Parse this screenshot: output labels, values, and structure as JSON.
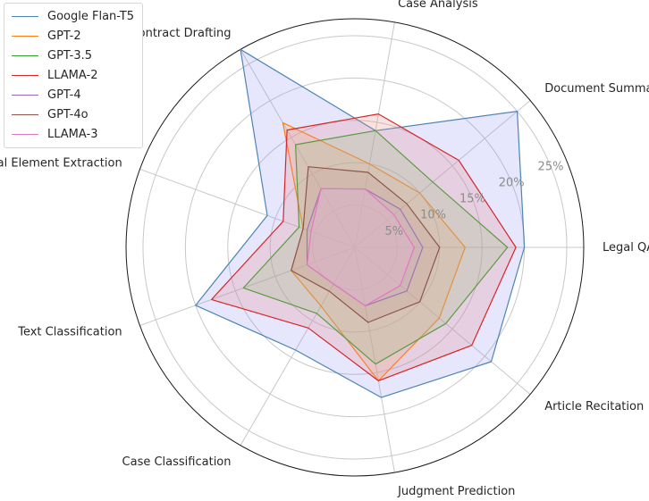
{
  "chart_data": {
    "type": "radar",
    "axes": [
      "Legal QA",
      "Document Summarization",
      "Case Analysis",
      "Contract Drafting",
      "Legal Element Extraction",
      "Text Classification",
      "Case Classification",
      "Judgment Prediction",
      "Article Recitation"
    ],
    "radial_ticks": [
      "5%",
      "10%",
      "15%",
      "20%",
      "25%"
    ],
    "radial_tick_values": [
      5,
      10,
      15,
      20,
      25
    ],
    "rlim": [
      0,
      27
    ],
    "grid": true,
    "legend_position": "top-left",
    "series": [
      {
        "name": "Google Flan-T5",
        "color": "#4c84b5",
        "fill": "#8c8cf5",
        "values": [
          20,
          25,
          14,
          27,
          11,
          20,
          14,
          18,
          21
        ]
      },
      {
        "name": "GPT-2",
        "color": "#ff7f0e",
        "fill": "#f7b27c",
        "values": [
          13,
          10,
          10,
          17,
          6.5,
          8,
          8,
          16,
          13
        ]
      },
      {
        "name": "GPT-3.5",
        "color": "#2ca02c",
        "fill": "#7fd07f",
        "values": [
          18,
          12,
          14,
          14,
          7,
          14,
          9,
          14,
          14
        ]
      },
      {
        "name": "LLAMA-2",
        "color": "#d62728",
        "fill": "#e88b8b",
        "values": [
          19,
          16,
          16,
          16,
          9,
          18,
          11,
          16,
          18
        ]
      },
      {
        "name": "GPT-4",
        "color": "#9467bd",
        "fill": "#c6b0e0",
        "values": [
          8,
          7,
          7,
          8,
          6,
          6,
          5,
          7,
          8
        ]
      },
      {
        "name": "GPT-4o",
        "color": "#8c564b",
        "fill": "#c79f95",
        "values": [
          10,
          8,
          9,
          11,
          6.5,
          8,
          6,
          9,
          10
        ]
      },
      {
        "name": "LLAMA-3",
        "color": "#e377c2",
        "fill": "#f2b5de",
        "values": [
          7,
          6,
          7,
          8,
          5.5,
          6,
          5,
          7,
          7
        ]
      }
    ]
  }
}
